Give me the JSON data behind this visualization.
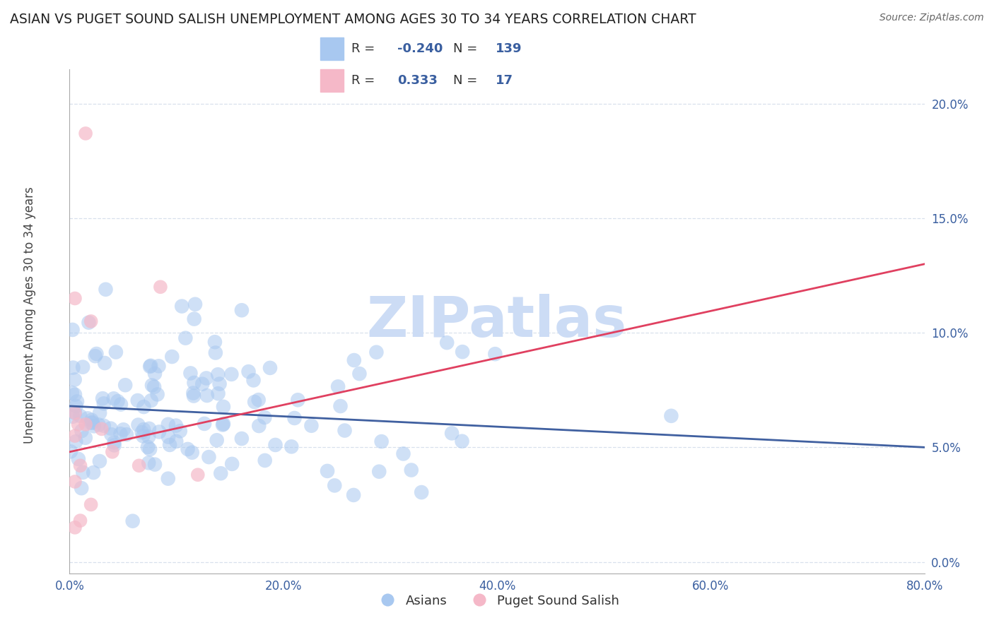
{
  "title": "ASIAN VS PUGET SOUND SALISH UNEMPLOYMENT AMONG AGES 30 TO 34 YEARS CORRELATION CHART",
  "source": "Source: ZipAtlas.com",
  "ylabel": "Unemployment Among Ages 30 to 34 years",
  "xlim": [
    0.0,
    0.8
  ],
  "ylim": [
    -0.005,
    0.215
  ],
  "xticks": [
    0.0,
    0.2,
    0.4,
    0.6,
    0.8
  ],
  "xtick_labels": [
    "0.0%",
    "20.0%",
    "40.0%",
    "60.0%",
    "80.0%"
  ],
  "yticks": [
    0.0,
    0.05,
    0.1,
    0.15,
    0.2
  ],
  "ytick_labels": [
    "0.0%",
    "5.0%",
    "10.0%",
    "15.0%",
    "20.0%"
  ],
  "blue_R": -0.24,
  "blue_N": 139,
  "pink_R": 0.333,
  "pink_N": 17,
  "blue_color": "#a8c8f0",
  "pink_color": "#f5b8c8",
  "blue_line_color": "#4060a0",
  "pink_line_color": "#e04060",
  "watermark": "ZIPatlas",
  "watermark_color": "#ccdcf5",
  "title_fontsize": 13.5,
  "source_fontsize": 10,
  "legend_label_blue": "Asians",
  "legend_label_pink": "Puget Sound Salish",
  "legend_value_color": "#3a5fa0",
  "background_color": "#ffffff",
  "grid_color": "#d8e0ec",
  "axis_tick_color": "#3a5fa0",
  "ylabel_color": "#444444",
  "blue_trend_x0": 0.0,
  "blue_trend_y0": 0.068,
  "blue_trend_x1": 0.8,
  "blue_trend_y1": 0.05,
  "pink_trend_x0": 0.0,
  "pink_trend_y0": 0.048,
  "pink_trend_x1": 0.8,
  "pink_trend_y1": 0.13
}
